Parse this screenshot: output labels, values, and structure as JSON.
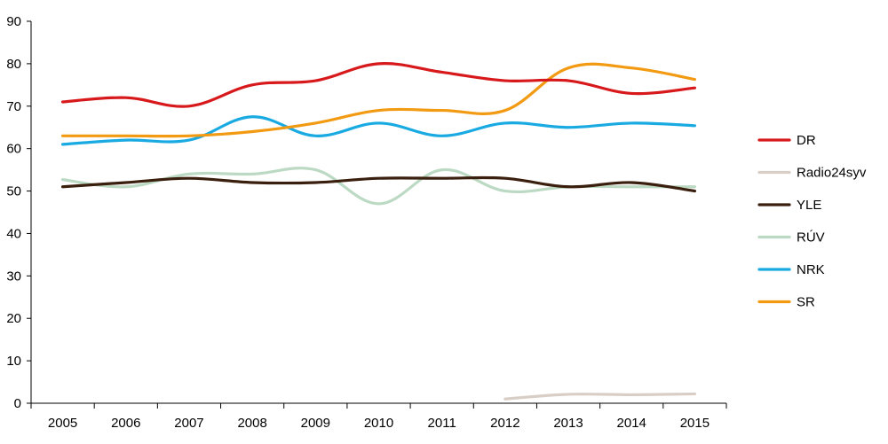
{
  "chart_data": {
    "type": "line",
    "title": "",
    "xlabel": "",
    "ylabel": "",
    "x": [
      "2005",
      "2006",
      "2007",
      "2008",
      "2009",
      "2010",
      "2011",
      "2012",
      "2013",
      "2014",
      "2015"
    ],
    "ylim": [
      0,
      90
    ],
    "yticks": [
      "0",
      "10",
      "20",
      "30",
      "40",
      "50",
      "60",
      "70",
      "80",
      "90"
    ],
    "grid": false,
    "legend_position": "right",
    "series": [
      {
        "name": "DR",
        "color": "#d7191c",
        "values": [
          71,
          72,
          70,
          75,
          76,
          80,
          78,
          76,
          76,
          73,
          74.3
        ]
      },
      {
        "name": "Radio24syv",
        "color": "#d9cec6",
        "values": [
          null,
          null,
          null,
          null,
          null,
          null,
          null,
          1,
          2.1,
          2,
          2.2
        ]
      },
      {
        "name": "YLE",
        "color": "#3b1f0e",
        "values": [
          51,
          52,
          53,
          52,
          52,
          53,
          53,
          53,
          51,
          52,
          50
        ]
      },
      {
        "name": "RÚV",
        "color": "#bcd9c4",
        "values": [
          52.7,
          51,
          54,
          54,
          55,
          47,
          55,
          50,
          51,
          51,
          51
        ]
      },
      {
        "name": "NRK",
        "color": "#1aaae2",
        "values": [
          61,
          62,
          62,
          67.5,
          63,
          66,
          63,
          66,
          65,
          66,
          65.4
        ]
      },
      {
        "name": "SR",
        "color": "#f29a12",
        "values": [
          63,
          63,
          63,
          64,
          66,
          69,
          69,
          69,
          79,
          79,
          76.3
        ]
      }
    ]
  }
}
